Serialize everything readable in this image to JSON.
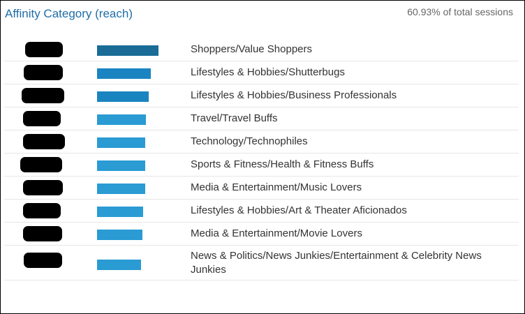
{
  "widget": {
    "title": "Affinity Category (reach)",
    "subtitle": "60.93% of total sessions"
  },
  "colors": {
    "title": "#1f6ea8",
    "bar_top": "#1a6c97",
    "bar": "#1a84c1",
    "bar_light": "#2a9bd3"
  },
  "rows": [
    {
      "label": "Shoppers/Value Shoppers",
      "share": 1.0
    },
    {
      "label": "Lifestyles & Hobbies/Shutterbugs",
      "share": 0.875
    },
    {
      "label": "Lifestyles & Hobbies/Business Professionals",
      "share": 0.84
    },
    {
      "label": "Travel/Travel Buffs",
      "share": 0.795
    },
    {
      "label": "Technology/Technophiles",
      "share": 0.785
    },
    {
      "label": "Sports & Fitness/Health & Fitness Buffs",
      "share": 0.785
    },
    {
      "label": "Media & Entertainment/Music Lovers",
      "share": 0.785
    },
    {
      "label": "Lifestyles & Hobbies/Art & Theater Aficionados",
      "share": 0.75
    },
    {
      "label": "Media & Entertainment/Movie Lovers",
      "share": 0.74
    },
    {
      "label": "News & Politics/News Junkies/Entertainment & Celebrity News Junkies",
      "share": 0.72
    }
  ]
}
